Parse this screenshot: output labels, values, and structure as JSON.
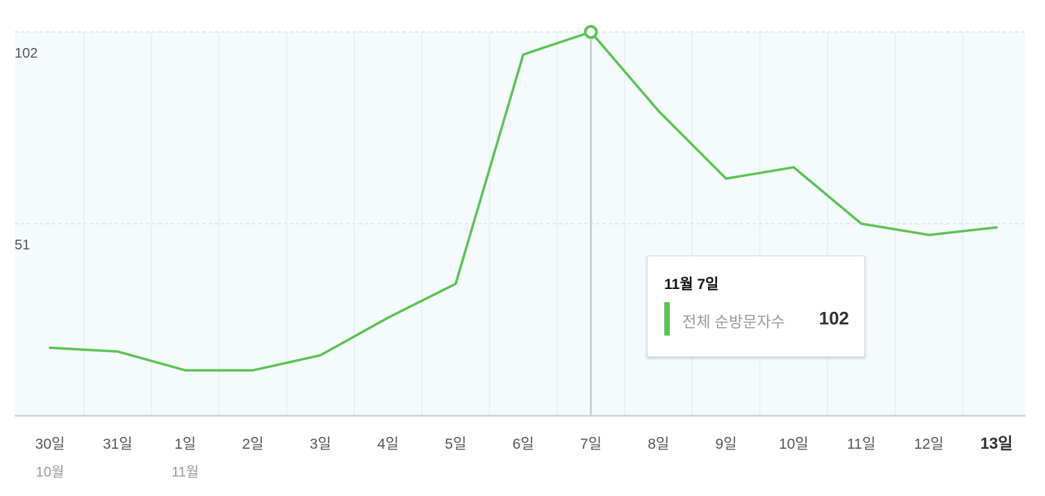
{
  "colors": {
    "line": "#5ac452",
    "plot_bg": "#f5fafd",
    "grid": "#dde9ef",
    "axis": "#c8c8c8",
    "cursor": "#cbd0d4",
    "tick_text": "#555555",
    "month_text": "#9a9a9a"
  },
  "chart_data": {
    "type": "line",
    "title": "",
    "xlabel": "",
    "ylabel": "",
    "ylim": [
      0,
      102
    ],
    "y_ticks": [
      "102",
      "51"
    ],
    "y_tick_values": [
      102,
      51
    ],
    "grid": true,
    "categories": [
      "30일",
      "31일",
      "1일",
      "2일",
      "3일",
      "4일",
      "5일",
      "6일",
      "7일",
      "8일",
      "9일",
      "10일",
      "11일",
      "12일",
      "13일"
    ],
    "month_labels": [
      {
        "index": 0,
        "label": "10월"
      },
      {
        "index": 2,
        "label": "11월"
      }
    ],
    "bold_category_index": 14,
    "highlight_index": 8,
    "series": [
      {
        "name": "전체 순방문자수",
        "values": [
          18,
          17,
          12,
          12,
          16,
          26,
          35,
          96,
          102,
          81,
          63,
          66,
          51,
          48,
          50
        ]
      }
    ]
  },
  "tooltip": {
    "date": "11월 7일",
    "series_label": "전체 순방문자수",
    "value": "102"
  }
}
